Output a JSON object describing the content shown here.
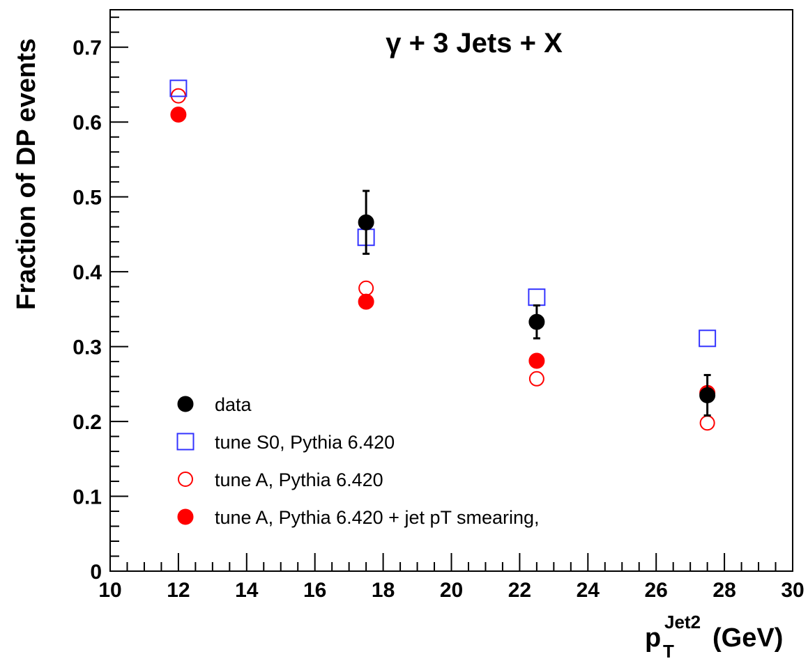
{
  "chart_data": {
    "type": "scatter",
    "title": "γ + 3 Jets + X",
    "ylabel": "Fraction of DP events",
    "xlabel": {
      "main": "p",
      "sub": "T",
      "sup": "Jet2",
      "unit": "(GeV)"
    },
    "xlim": [
      10,
      30
    ],
    "ylim": [
      0,
      0.75
    ],
    "x_ticks": [
      10,
      12,
      14,
      16,
      18,
      20,
      22,
      24,
      26,
      28,
      30
    ],
    "x_tick_labels": [
      "10",
      "12",
      "14",
      "16",
      "18",
      "20",
      "22",
      "24",
      "26",
      "28",
      "30"
    ],
    "y_ticks": [
      0,
      0.1,
      0.2,
      0.3,
      0.4,
      0.5,
      0.6,
      0.7
    ],
    "y_tick_labels": [
      "0",
      "0.1",
      "0.2",
      "0.3",
      "0.4",
      "0.5",
      "0.6",
      "0.7"
    ],
    "grid": false,
    "legend_position": "bottom-left",
    "series": [
      {
        "name": "data",
        "marker": "filled-circle",
        "color": "#000000",
        "x": [
          17.5,
          22.5,
          27.5
        ],
        "y": [
          0.466,
          0.333,
          0.235
        ],
        "yerr": [
          0.042,
          0.022,
          0.027
        ]
      },
      {
        "name": "tune S0, Pythia 6.420",
        "marker": "open-square",
        "color": "#3333ff",
        "x": [
          12,
          17.5,
          22.5,
          27.5
        ],
        "y": [
          0.645,
          0.446,
          0.366,
          0.311
        ]
      },
      {
        "name": "tune  A, Pythia 6.420",
        "marker": "open-circle",
        "color": "#ff0000",
        "x": [
          12,
          17.5,
          22.5,
          27.5
        ],
        "y": [
          0.635,
          0.378,
          0.257,
          0.198
        ]
      },
      {
        "name": "tune  A, Pythia 6.420 + jet pT smearing,",
        "marker": "filled-circle",
        "color": "#ff0000",
        "x": [
          12,
          17.5,
          22.5,
          27.5
        ],
        "y": [
          0.61,
          0.36,
          0.281,
          0.238
        ]
      }
    ]
  }
}
